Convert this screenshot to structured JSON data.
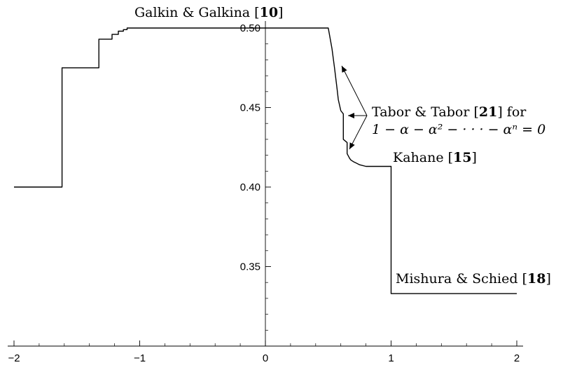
{
  "chart_data": {
    "type": "line",
    "title": "",
    "xlabel": "",
    "ylabel": "",
    "xlim": [
      -2,
      2
    ],
    "ylim": [
      0.3,
      0.5
    ],
    "x_ticks": [
      {
        "value": -2,
        "label": "−2"
      },
      {
        "value": -1,
        "label": "−1"
      },
      {
        "value": 0,
        "label": "0"
      },
      {
        "value": 1,
        "label": "1"
      },
      {
        "value": 2,
        "label": "2"
      }
    ],
    "y_ticks": [
      {
        "value": 0.35,
        "label": "0.35"
      },
      {
        "value": 0.4,
        "label": "0.40"
      },
      {
        "value": 0.45,
        "label": "0.45"
      },
      {
        "value": 0.5,
        "label": "0.50"
      }
    ],
    "grid": false,
    "series": [
      {
        "x": [
          -2.0,
          -1.618,
          -1.618,
          -1.325,
          -1.325,
          -1.22,
          -1.22,
          -1.17,
          -1.17,
          -1.13,
          -1.13,
          -1.1,
          -1.1,
          0.5,
          0.53,
          0.55,
          0.57,
          0.58,
          0.6,
          0.62,
          0.62,
          0.65,
          0.65,
          0.67,
          0.68,
          0.7,
          0.75,
          0.8,
          1.0,
          1.0,
          2.0
        ],
        "y": [
          0.4,
          0.4,
          0.475,
          0.475,
          0.493,
          0.493,
          0.496,
          0.496,
          0.498,
          0.498,
          0.499,
          0.499,
          0.5,
          0.5,
          0.487,
          0.475,
          0.462,
          0.455,
          0.448,
          0.446,
          0.43,
          0.428,
          0.421,
          0.418,
          0.417,
          0.416,
          0.414,
          0.413,
          0.413,
          0.333,
          0.333
        ]
      }
    ],
    "annotations": [
      {
        "pre": "Galkin & Galkina [",
        "bold": "10",
        "post": "]"
      },
      {
        "pre": "Tabor & Tabor [",
        "bold": "21",
        "post": "] for"
      },
      {
        "pre": "1 − α − α² − · · · − αⁿ = 0",
        "bold": "",
        "post": ""
      },
      {
        "pre": "Kahane [",
        "bold": "15",
        "post": "]"
      },
      {
        "pre": "Mishura & Schied [",
        "bold": "18",
        "post": "]"
      }
    ]
  }
}
